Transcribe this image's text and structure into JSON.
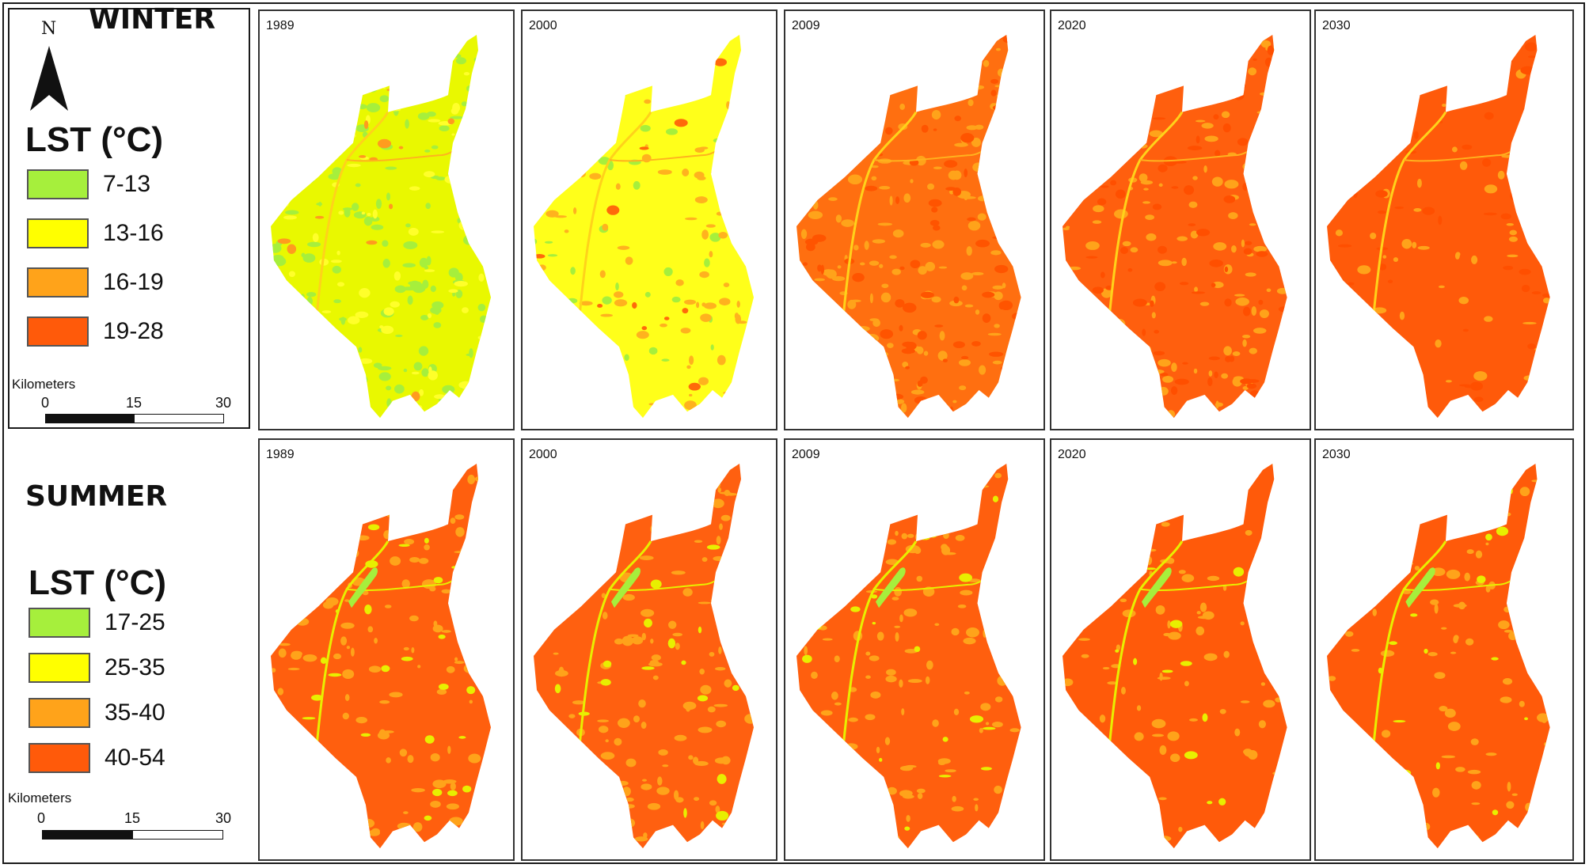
{
  "winter": {
    "title": "WINTER",
    "north_label": "N",
    "legend": {
      "title": "LST (°C)",
      "classes": [
        {
          "label": "7-13",
          "color": "#a6ef3c"
        },
        {
          "label": "13-16",
          "color": "#ffff00"
        },
        {
          "label": "16-19",
          "color": "#ffa31a"
        },
        {
          "label": "19-28",
          "color": "#ff5a0a"
        }
      ]
    },
    "scalebar": {
      "unit": "Kilometers",
      "ticks": [
        "0",
        "15",
        "30"
      ]
    },
    "maps": [
      {
        "year": "1989",
        "base": "#e9f800",
        "mix": [
          [
            "#a6ef3c",
            0.42
          ],
          [
            "#ffff2a",
            0.18
          ],
          [
            "#ff9b1e",
            0.03
          ]
        ]
      },
      {
        "year": "2000",
        "base": "#ffff1a",
        "mix": [
          [
            "#a6ef3c",
            0.07
          ],
          [
            "#ffb21e",
            0.18
          ],
          [
            "#ff6a0a",
            0.03
          ]
        ]
      },
      {
        "year": "2009",
        "base": "#ff6f10",
        "mix": [
          [
            "#ffa31a",
            0.38
          ],
          [
            "#ff5400",
            0.22
          ]
        ]
      },
      {
        "year": "2020",
        "base": "#ff5f0e",
        "mix": [
          [
            "#ffa31a",
            0.28
          ],
          [
            "#ff4f00",
            0.18
          ]
        ]
      },
      {
        "year": "2030",
        "base": "#ff5a0a",
        "mix": [
          [
            "#ffa31a",
            0.13
          ],
          [
            "#ff4f00",
            0.12
          ]
        ]
      }
    ]
  },
  "summer": {
    "title": "SUMMER",
    "legend": {
      "title": "LST (°C)",
      "classes": [
        {
          "label": "17-25",
          "color": "#a6ef3c"
        },
        {
          "label": "25-35",
          "color": "#ffff00"
        },
        {
          "label": "35-40",
          "color": "#ffa31a"
        },
        {
          "label": "40-54",
          "color": "#ff5a0a"
        }
      ]
    },
    "scalebar": {
      "unit": "Kilometers",
      "ticks": [
        "0",
        "15",
        "30"
      ]
    },
    "maps": [
      {
        "year": "1989",
        "base": "#ff5f0e",
        "mix": [
          [
            "#ffa31a",
            0.3
          ],
          [
            "#e8ef00",
            0.08
          ]
        ]
      },
      {
        "year": "2000",
        "base": "#ff6010",
        "mix": [
          [
            "#ffa31a",
            0.32
          ],
          [
            "#e8ef00",
            0.05
          ]
        ]
      },
      {
        "year": "2009",
        "base": "#ff5f0e",
        "mix": [
          [
            "#ffa31a",
            0.3
          ],
          [
            "#e8ef00",
            0.07
          ]
        ]
      },
      {
        "year": "2020",
        "base": "#ff5a0a",
        "mix": [
          [
            "#ffa31a",
            0.2
          ],
          [
            "#e8ef00",
            0.05
          ]
        ]
      },
      {
        "year": "2030",
        "base": "#ff5a0a",
        "mix": [
          [
            "#ffa31a",
            0.2
          ],
          [
            "#e8ef00",
            0.05
          ]
        ]
      }
    ]
  }
}
